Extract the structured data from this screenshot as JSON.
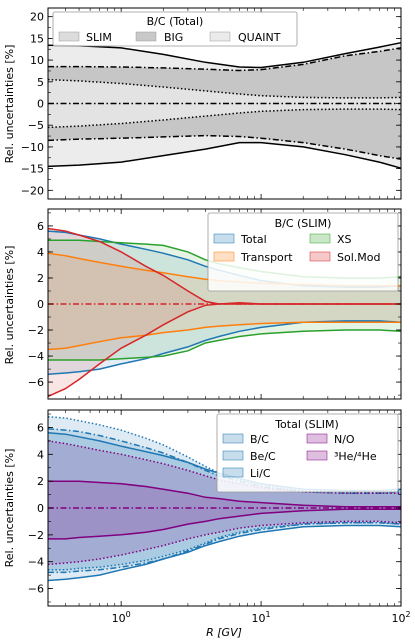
{
  "figure": {
    "shared_xlabel": "R [GV]",
    "x_ticks": [
      1,
      10,
      100
    ],
    "x_tick_labels": [
      "10^0",
      "10^1",
      "10^2"
    ]
  },
  "chart_data": [
    {
      "type": "area",
      "title": "B/C  (Total)",
      "ylabel": "Rel. uncertainties [%]",
      "xscale": "log",
      "xlim": [
        0.3,
        100
      ],
      "ylim": [
        -22,
        22
      ],
      "yticks": [
        -20,
        -15,
        -10,
        -5,
        0,
        5,
        10,
        15,
        20
      ],
      "legend": {
        "title": "B/C  (Total)",
        "placement": "top",
        "entries": [
          "SLIM",
          "BIG",
          "QUAINT"
        ]
      },
      "x": [
        0.3,
        0.5,
        1,
        2,
        4,
        7,
        10,
        20,
        40,
        70,
        100
      ],
      "series": [
        {
          "name": "SLIM",
          "style": "dotted",
          "upper": [
            5.5,
            5.2,
            4.6,
            3.8,
            2.9,
            2.2,
            1.8,
            1.4,
            1.3,
            1.3,
            1.4
          ],
          "lower": [
            -5.5,
            -5.2,
            -4.6,
            -3.8,
            -2.9,
            -2.2,
            -1.8,
            -1.4,
            -1.3,
            -1.3,
            -1.4
          ]
        },
        {
          "name": "BIG",
          "style": "dash-dot",
          "upper": [
            8.5,
            8.5,
            8.4,
            8.2,
            7.9,
            7.6,
            7.8,
            9,
            11,
            12,
            12.8
          ],
          "lower": [
            -8.5,
            -8.2,
            -8,
            -7.7,
            -7.4,
            -7.6,
            -8,
            -9,
            -10.5,
            -12,
            -12.8
          ]
        },
        {
          "name": "QUAINT",
          "style": "solid",
          "upper": [
            13.4,
            13.3,
            12.8,
            11.3,
            9.5,
            8.4,
            8.3,
            9.5,
            11.5,
            13,
            14
          ],
          "lower": [
            -14.5,
            -14.2,
            -13.5,
            -12,
            -10.5,
            -9,
            -9,
            -10,
            -11.8,
            -13.5,
            -14.9
          ]
        }
      ]
    },
    {
      "type": "area",
      "title": "B/C (SLIM)",
      "ylabel": "Rel. uncertainties [%]",
      "xscale": "log",
      "xlim": [
        0.3,
        100
      ],
      "ylim": [
        -7.3,
        7.3
      ],
      "yticks": [
        -6,
        -4,
        -2,
        0,
        2,
        4,
        6
      ],
      "legend": {
        "title": "B/C (SLIM)",
        "placement": "top-right",
        "entries": [
          "Total",
          "XS",
          "Transport",
          "Sol.Mod"
        ]
      },
      "x": [
        0.3,
        0.4,
        0.5,
        0.7,
        1,
        1.5,
        2,
        3,
        4,
        5,
        7,
        10,
        20,
        40,
        70,
        100
      ],
      "series": [
        {
          "name": "Total",
          "color": "#1f77b4",
          "upper": [
            5.6,
            5.5,
            5.3,
            5,
            4.6,
            4.2,
            3.9,
            3.4,
            2.9,
            2.6,
            2.2,
            1.8,
            1.4,
            1.3,
            1.3,
            1.4
          ],
          "lower": [
            -5.4,
            -5.3,
            -5.2,
            -5,
            -4.6,
            -4.2,
            -3.8,
            -3.3,
            -2.8,
            -2.5,
            -2.1,
            -1.8,
            -1.4,
            -1.3,
            -1.3,
            -1.4
          ]
        },
        {
          "name": "XS",
          "color": "#2ca02c",
          "upper": [
            4.9,
            4.9,
            4.9,
            4.8,
            4.7,
            4.6,
            4.5,
            4,
            3.4,
            3.1,
            2.8,
            2.5,
            2.1,
            2,
            2,
            2.1
          ],
          "lower": [
            -4.3,
            -4.3,
            -4.3,
            -4.3,
            -4.2,
            -4.1,
            -4,
            -3.6,
            -3,
            -2.8,
            -2.5,
            -2.3,
            -2.1,
            -2,
            -2,
            -2.1
          ]
        },
        {
          "name": "Transport",
          "color": "#ff7f0e",
          "upper": [
            3.9,
            3.7,
            3.5,
            3.2,
            2.9,
            2.6,
            2.4,
            2.1,
            1.9,
            1.8,
            1.7,
            1.6,
            1.5,
            1.4,
            1.4,
            1.4
          ],
          "lower": [
            -3.5,
            -3.4,
            -3.2,
            -2.9,
            -2.6,
            -2.4,
            -2.2,
            -2,
            -1.8,
            -1.7,
            -1.6,
            -1.5,
            -1.4,
            -1.4,
            -1.4,
            -1.4
          ]
        },
        {
          "name": "Sol.Mod",
          "color": "#d62728",
          "upper": [
            5.8,
            5.6,
            5.3,
            4.8,
            4,
            2.9,
            2.2,
            1,
            0.2,
            0,
            0.1,
            0,
            0,
            0,
            0,
            0
          ],
          "lower": [
            -7.1,
            -6.5,
            -5.8,
            -4.6,
            -3.4,
            -2.4,
            -1.6,
            -0.6,
            -0.1,
            0,
            0,
            0,
            0,
            0,
            0,
            0
          ]
        }
      ]
    },
    {
      "type": "area",
      "title": "Total (SLIM)",
      "ylabel": "Rel. uncertainties [%]",
      "xlabel": "R [GV]",
      "xscale": "log",
      "xlim": [
        0.3,
        100
      ],
      "ylim": [
        -7.3,
        7.3
      ],
      "yticks": [
        -6,
        -4,
        -2,
        0,
        2,
        4,
        6
      ],
      "legend": {
        "title": "Total (SLIM)",
        "placement": "top-right",
        "entries": [
          "B/C",
          "N/O",
          "Be/C",
          "³He/⁴He",
          "Li/C"
        ]
      },
      "x": [
        0.3,
        0.4,
        0.5,
        0.7,
        1,
        1.5,
        2,
        3,
        4,
        5,
        7,
        10,
        20,
        40,
        70,
        100
      ],
      "series": [
        {
          "name": "B/C",
          "color": "#1f77b4",
          "style": "solid",
          "upper": [
            5.6,
            5.5,
            5.3,
            5,
            4.6,
            4.2,
            3.9,
            3.4,
            2.9,
            2.6,
            2.2,
            1.8,
            1.4,
            1.3,
            1.3,
            1.4
          ],
          "lower": [
            -5.4,
            -5.3,
            -5.2,
            -5,
            -4.6,
            -4.2,
            -3.8,
            -3.3,
            -2.8,
            -2.5,
            -2.1,
            -1.8,
            -1.4,
            -1.3,
            -1.3,
            -1.4
          ]
        },
        {
          "name": "Be/C",
          "color": "#1f77b4",
          "style": "dash-dot",
          "upper": [
            5.9,
            5.8,
            5.7,
            5.4,
            5,
            4.5,
            4.1,
            3.4,
            2.8,
            2.4,
            2,
            1.6,
            1.2,
            1.1,
            1.1,
            1.2
          ],
          "lower": [
            -4.8,
            -4.8,
            -4.7,
            -4.6,
            -4.4,
            -4.1,
            -3.8,
            -3.2,
            -2.7,
            -2.3,
            -1.9,
            -1.6,
            -1.2,
            -1.1,
            -1.1,
            -1.2
          ]
        },
        {
          "name": "Li/C",
          "color": "#1f77b4",
          "style": "dotted",
          "upper": [
            6.8,
            6.7,
            6.5,
            6.2,
            5.8,
            5.2,
            4.7,
            3.8,
            3.1,
            2.6,
            2.1,
            1.7,
            1.3,
            1.2,
            1.2,
            1.3
          ],
          "lower": [
            -4.6,
            -4.6,
            -4.5,
            -4.4,
            -4.2,
            -3.9,
            -3.6,
            -3.1,
            -2.6,
            -2.2,
            -1.8,
            -1.5,
            -1.2,
            -1.1,
            -1.1,
            -1.2
          ]
        },
        {
          "name": "N/O",
          "color": "#800080",
          "style": "solid",
          "upper": [
            2,
            2,
            2,
            1.9,
            1.8,
            1.6,
            1.4,
            1.1,
            0.8,
            0.7,
            0.5,
            0.4,
            0.2,
            0.1,
            0.1,
            0.1
          ],
          "lower": [
            -2.3,
            -2.3,
            -2.2,
            -2.1,
            -2,
            -1.8,
            -1.6,
            -1.2,
            -1,
            -0.8,
            -0.6,
            -0.4,
            -0.2,
            -0.1,
            -0.1,
            -0.1
          ]
        },
        {
          "name": "³He/⁴He",
          "color": "#800080",
          "style": "dotted",
          "upper": [
            5,
            4.8,
            4.6,
            4.3,
            4,
            3.6,
            3.3,
            2.8,
            2.4,
            2.1,
            1.8,
            1.5,
            1.2,
            1.1,
            1.1,
            1.1
          ],
          "lower": [
            -4.2,
            -4.1,
            -4,
            -3.8,
            -3.5,
            -3.1,
            -2.8,
            -2.3,
            -2,
            -1.8,
            -1.5,
            -1.3,
            -1.1,
            -1,
            -1,
            -1.1
          ]
        }
      ]
    }
  ]
}
